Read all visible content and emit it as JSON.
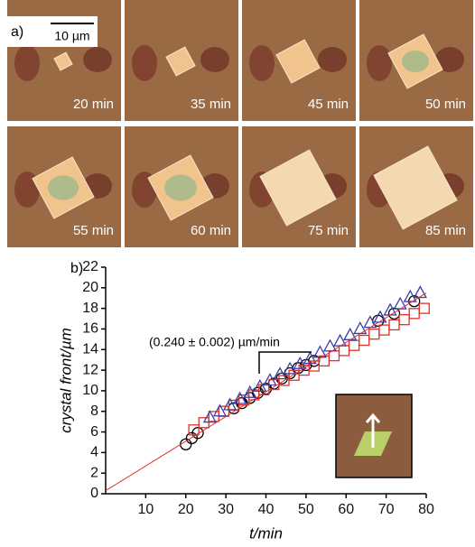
{
  "panel_a": {
    "label": "a)",
    "scale_bar": "10 µm",
    "frames": [
      "20 min",
      "35 min",
      "45 min",
      "50 min",
      "55 min",
      "60 min",
      "75 min",
      "85 min"
    ]
  },
  "chart_data": {
    "type": "scatter",
    "panel_label": "b)",
    "xlabel": "t/min",
    "ylabel": "crystal front/µm",
    "annotation": "(0.240 ± 0.002) µm/min",
    "xlim": [
      0,
      80
    ],
    "xticks": [
      10,
      20,
      30,
      40,
      50,
      60,
      70,
      80
    ],
    "ylim": [
      0,
      22
    ],
    "yticks": [
      0,
      2,
      4,
      6,
      8,
      10,
      12,
      14,
      16,
      18,
      20,
      22
    ],
    "series": [
      {
        "color": "#000000",
        "marker": "circle",
        "x": [
          20,
          21.5,
          23,
          32,
          34,
          36,
          38,
          40,
          42,
          44,
          46,
          48,
          50,
          52,
          68,
          72,
          77
        ],
        "values": [
          4.8,
          5.4,
          5.9,
          8.3,
          8.8,
          9.3,
          9.8,
          10.2,
          10.7,
          11.2,
          11.7,
          12.2,
          12.5,
          12.9,
          16.8,
          17.5,
          18.7
        ]
      },
      {
        "color": "#e0302a",
        "marker": "square",
        "x": [
          22,
          24.5,
          27,
          29.5,
          32,
          34.5,
          37,
          39.5,
          42,
          44.5,
          47,
          49.5,
          52,
          54.5,
          57,
          59.5,
          62,
          64.5,
          67,
          69.5,
          72,
          74.5,
          77,
          79.5
        ],
        "values": [
          6.2,
          6.9,
          7.5,
          8.0,
          8.6,
          9.1,
          9.6,
          10.1,
          10.6,
          11.0,
          11.5,
          12.0,
          12.4,
          12.9,
          13.4,
          13.9,
          14.4,
          14.9,
          15.5,
          15.9,
          16.4,
          16.9,
          17.5,
          18.0
        ]
      },
      {
        "color": "#3b3fa6",
        "marker": "triangle",
        "x": [
          26,
          28.5,
          31,
          33.5,
          36,
          38.5,
          41,
          43.5,
          46,
          48.5,
          51,
          53.5,
          56,
          58.5,
          61,
          63.5,
          66,
          68.5,
          71,
          73.5,
          76,
          78.5
        ],
        "values": [
          7.4,
          8.0,
          8.6,
          9.2,
          9.8,
          10.4,
          11.0,
          11.6,
          12.1,
          12.6,
          13.1,
          13.7,
          14.3,
          14.8,
          15.4,
          16.0,
          16.6,
          17.1,
          17.8,
          18.4,
          19.1,
          19.5
        ]
      },
      {
        "color": "#e0302a",
        "marker": "line",
        "x": [
          0,
          80
        ],
        "values": [
          0.3,
          19.5
        ]
      }
    ]
  }
}
